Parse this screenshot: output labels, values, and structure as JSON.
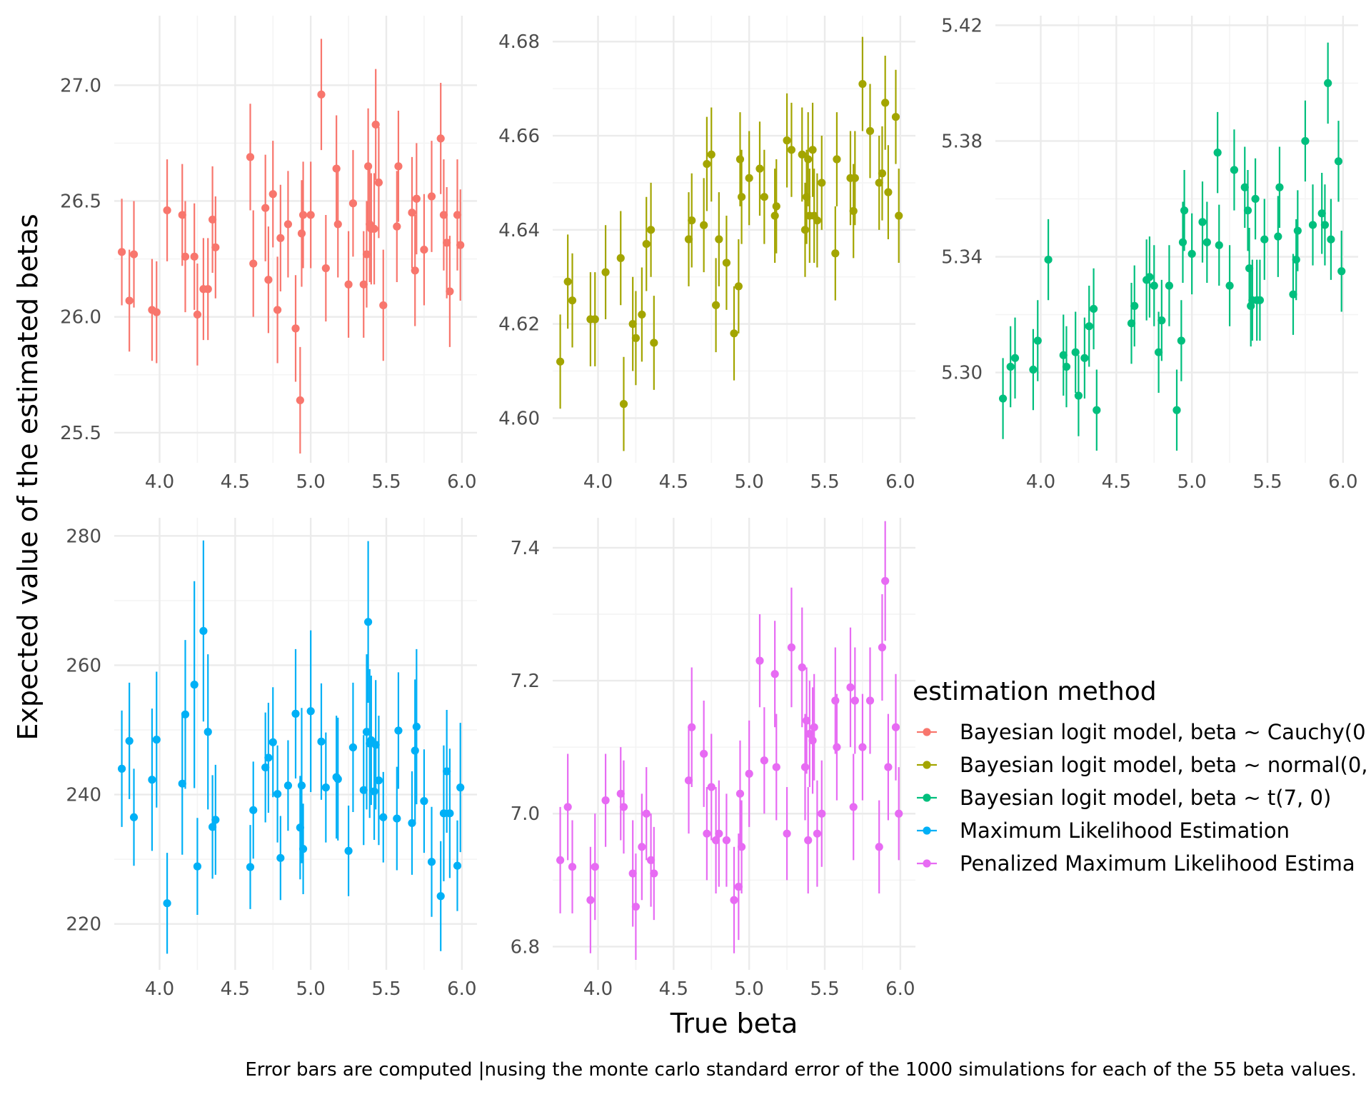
{
  "colors": {
    "cauchy": "#F8766D",
    "normal": "#A3A500",
    "t": "#00BF7D",
    "mle": "#00B0F6",
    "pmle": "#E76BF3",
    "grid_major": "#ebebeb",
    "grid_minor": "#f4f4f4"
  },
  "chart_data": {
    "type": "scatter",
    "x_label": "True beta",
    "y_label": "Expected value of the estimated betas",
    "caption": "Error bars are computed |nusing the monte carlo standard error of the 1000 simulations for each of the 55 beta values.",
    "legend": {
      "title": "estimation method",
      "placement": "right",
      "entries": [
        {
          "key": "cauchy",
          "label": "Bayesian logit model, beta ~ Cauchy(0"
        },
        {
          "key": "normal",
          "label": "Bayesian logit model, beta ~ normal(0,"
        },
        {
          "key": "t",
          "label": "Bayesian logit model, beta ~ t(7, 0)"
        },
        {
          "key": "mle",
          "label": "Maximum Likelihood Estimation"
        },
        {
          "key": "pmle",
          "label": "Penalized Maximum Likelihood Estima"
        }
      ]
    },
    "x_ticks": [
      "4.0",
      "4.5",
      "5.0",
      "5.5",
      "6.0"
    ],
    "x_tick_values": [
      4.0,
      4.5,
      5.0,
      5.5,
      6.0
    ],
    "xlim": [
      3.7,
      6.1
    ],
    "grid": true,
    "x": [
      3.75,
      3.8,
      3.83,
      3.95,
      3.98,
      4.05,
      4.15,
      4.17,
      4.23,
      4.25,
      4.29,
      4.32,
      4.35,
      4.37,
      4.6,
      4.62,
      4.7,
      4.72,
      4.75,
      4.78,
      4.8,
      4.85,
      4.9,
      4.93,
      4.94,
      4.95,
      5.0,
      5.07,
      5.1,
      5.17,
      5.18,
      5.25,
      5.28,
      5.35,
      5.37,
      5.38,
      5.39,
      5.4,
      5.42,
      5.43,
      5.45,
      5.48,
      5.57,
      5.58,
      5.67,
      5.69,
      5.7,
      5.75,
      5.8,
      5.86,
      5.88,
      5.9,
      5.92,
      5.97,
      5.99
    ],
    "panels": [
      {
        "key": "cauchy",
        "ylim": [
          25.37,
          27.3
        ],
        "y_ticks": [
          "25.5",
          "26.0",
          "26.5",
          "27.0"
        ],
        "y_tick_values": [
          25.5,
          26.0,
          26.5,
          27.0
        ],
        "y": [
          26.28,
          26.07,
          26.27,
          26.03,
          26.02,
          26.46,
          26.44,
          26.26,
          26.26,
          26.01,
          26.12,
          26.12,
          26.42,
          26.3,
          26.69,
          26.23,
          26.47,
          26.16,
          26.53,
          26.03,
          26.34,
          26.4,
          25.95,
          25.64,
          26.36,
          26.44,
          26.44,
          26.96,
          26.21,
          26.64,
          26.4,
          26.14,
          26.49,
          26.14,
          26.27,
          26.65,
          26.4,
          26.38,
          26.38,
          26.83,
          26.58,
          26.05,
          26.39,
          26.65,
          26.45,
          26.2,
          26.51,
          26.29,
          26.52,
          26.77,
          26.44,
          26.32,
          26.11,
          26.44,
          26.31
        ],
        "se": [
          0.23,
          0.22,
          0.23,
          0.22,
          0.22,
          0.22,
          0.22,
          0.24,
          0.23,
          0.22,
          0.22,
          0.22,
          0.23,
          0.22,
          0.23,
          0.23,
          0.23,
          0.23,
          0.23,
          0.23,
          0.23,
          0.23,
          0.23,
          0.23,
          0.23,
          0.23,
          0.23,
          0.24,
          0.23,
          0.23,
          0.23,
          0.23,
          0.23,
          0.23,
          0.23,
          0.25,
          0.25,
          0.24,
          0.24,
          0.24,
          0.24,
          0.24,
          0.24,
          0.24,
          0.24,
          0.24,
          0.24,
          0.24,
          0.24,
          0.24,
          0.24,
          0.24,
          0.24,
          0.24,
          0.24
        ]
      },
      {
        "key": "normal",
        "ylim": [
          4.5905,
          4.6855
        ],
        "y_ticks": [
          "4.60",
          "4.62",
          "4.64",
          "4.66",
          "4.68"
        ],
        "y_tick_values": [
          4.6,
          4.62,
          4.64,
          4.66,
          4.68
        ],
        "y": [
          4.612,
          4.629,
          4.625,
          4.621,
          4.621,
          4.631,
          4.634,
          4.603,
          4.62,
          4.617,
          4.622,
          4.637,
          4.64,
          4.616,
          4.638,
          4.642,
          4.641,
          4.654,
          4.656,
          4.624,
          4.638,
          4.633,
          4.618,
          4.628,
          4.655,
          4.647,
          4.651,
          4.653,
          4.647,
          4.643,
          4.645,
          4.659,
          4.657,
          4.656,
          4.64,
          4.647,
          4.655,
          4.643,
          4.657,
          4.643,
          4.642,
          4.65,
          4.635,
          4.655,
          4.651,
          4.644,
          4.651,
          4.671,
          4.661,
          4.65,
          4.652,
          4.667,
          4.648,
          4.664,
          4.643
        ],
        "se": [
          0.01,
          0.01,
          0.01,
          0.01,
          0.01,
          0.01,
          0.01,
          0.01,
          0.01,
          0.01,
          0.01,
          0.01,
          0.01,
          0.01,
          0.01,
          0.01,
          0.01,
          0.01,
          0.01,
          0.01,
          0.01,
          0.01,
          0.01,
          0.01,
          0.01,
          0.01,
          0.01,
          0.01,
          0.01,
          0.01,
          0.01,
          0.01,
          0.01,
          0.01,
          0.01,
          0.01,
          0.01,
          0.01,
          0.01,
          0.01,
          0.01,
          0.01,
          0.01,
          0.01,
          0.01,
          0.01,
          0.01,
          0.01,
          0.01,
          0.01,
          0.01,
          0.01,
          0.01,
          0.01,
          0.01
        ]
      },
      {
        "key": "t",
        "ylim": [
          5.2688,
          5.4233
        ],
        "y_ticks": [
          "5.30",
          "5.34",
          "5.38",
          "5.42"
        ],
        "y_tick_values": [
          5.3,
          5.34,
          5.38,
          5.42
        ],
        "y": [
          5.291,
          5.302,
          5.305,
          5.301,
          5.311,
          5.339,
          5.306,
          5.302,
          5.307,
          5.292,
          5.305,
          5.316,
          5.322,
          5.287,
          5.317,
          5.323,
          5.332,
          5.333,
          5.33,
          5.307,
          5.318,
          5.33,
          5.287,
          5.311,
          5.345,
          5.356,
          5.341,
          5.352,
          5.345,
          5.376,
          5.344,
          5.33,
          5.37,
          5.364,
          5.356,
          5.336,
          5.323,
          5.325,
          5.36,
          5.325,
          5.325,
          5.346,
          5.347,
          5.364,
          5.327,
          5.339,
          5.349,
          5.38,
          5.351,
          5.355,
          5.351,
          5.4,
          5.346,
          5.373,
          5.335
        ],
        "se": [
          0.014,
          0.014,
          0.014,
          0.014,
          0.014,
          0.014,
          0.014,
          0.014,
          0.014,
          0.014,
          0.014,
          0.014,
          0.014,
          0.014,
          0.014,
          0.014,
          0.014,
          0.014,
          0.014,
          0.014,
          0.014,
          0.014,
          0.014,
          0.014,
          0.014,
          0.014,
          0.014,
          0.014,
          0.014,
          0.014,
          0.014,
          0.014,
          0.014,
          0.014,
          0.014,
          0.014,
          0.014,
          0.014,
          0.014,
          0.014,
          0.014,
          0.014,
          0.014,
          0.014,
          0.014,
          0.014,
          0.014,
          0.014,
          0.014,
          0.014,
          0.014,
          0.014,
          0.014,
          0.014,
          0.014
        ]
      },
      {
        "key": "mle",
        "ylim": [
          212.9,
          282.8
        ],
        "y_ticks": [
          "220",
          "240",
          "260",
          "280"
        ],
        "y_tick_values": [
          220,
          240,
          260,
          280
        ],
        "y": [
          244.0,
          248.3,
          236.5,
          242.3,
          248.5,
          223.2,
          241.7,
          252.4,
          257.0,
          228.9,
          265.3,
          249.7,
          235.0,
          236.1,
          228.8,
          237.6,
          244.2,
          245.7,
          248.1,
          240.1,
          230.2,
          241.4,
          252.5,
          234.9,
          241.4,
          231.6,
          252.9,
          248.2,
          241.1,
          242.7,
          242.4,
          231.3,
          247.3,
          240.7,
          249.7,
          266.7,
          247.9,
          248.4,
          240.5,
          247.7,
          242.2,
          236.5,
          236.3,
          249.9,
          235.6,
          246.8,
          250.5,
          239.0,
          229.6,
          224.3,
          237.1,
          243.6,
          237.1,
          229.0,
          241.1
        ],
        "se": [
          9.0,
          9.0,
          7.5,
          11.0,
          10.5,
          7.8,
          11.0,
          11.5,
          16.0,
          7.5,
          14.0,
          12.0,
          8.0,
          8.5,
          6.5,
          7.5,
          8.5,
          8.5,
          8.5,
          7.5,
          6.5,
          7.0,
          10.0,
          8.0,
          12.0,
          7.0,
          12.5,
          9.0,
          8.5,
          9.5,
          9.5,
          7.0,
          10.0,
          8.5,
          12.0,
          12.5,
          11.5,
          10.0,
          7.5,
          10.0,
          10.0,
          7.0,
          8.0,
          9.0,
          8.0,
          11.0,
          12.0,
          8.0,
          8.5,
          8.5,
          10.5,
          9.5,
          10.0,
          7.0,
          10.0
        ]
      },
      {
        "key": "pmle",
        "ylim": [
          6.765,
          7.445
        ],
        "y_ticks": [
          "6.8",
          "7.0",
          "7.2",
          "7.4"
        ],
        "y_tick_values": [
          6.8,
          7.0,
          7.2,
          7.4
        ],
        "y": [
          6.93,
          7.01,
          6.92,
          6.87,
          6.92,
          7.02,
          7.03,
          7.01,
          6.91,
          6.86,
          6.95,
          7.0,
          6.93,
          6.91,
          7.05,
          7.13,
          7.09,
          6.97,
          7.04,
          6.96,
          6.97,
          6.96,
          6.87,
          6.89,
          7.03,
          6.95,
          7.06,
          7.23,
          7.08,
          7.21,
          7.07,
          6.97,
          7.25,
          7.22,
          7.07,
          7.14,
          6.96,
          7.12,
          7.11,
          7.13,
          6.97,
          7.0,
          7.17,
          7.1,
          7.19,
          7.01,
          7.17,
          7.1,
          7.17,
          6.95,
          7.25,
          7.35,
          7.07,
          7.13,
          7.0
        ],
        "se": [
          0.08,
          0.08,
          0.07,
          0.08,
          0.08,
          0.07,
          0.07,
          0.07,
          0.08,
          0.08,
          0.08,
          0.07,
          0.07,
          0.07,
          0.08,
          0.09,
          0.08,
          0.07,
          0.08,
          0.08,
          0.08,
          0.07,
          0.08,
          0.08,
          0.08,
          0.07,
          0.08,
          0.07,
          0.08,
          0.08,
          0.08,
          0.07,
          0.09,
          0.09,
          0.08,
          0.08,
          0.08,
          0.08,
          0.08,
          0.08,
          0.08,
          0.08,
          0.08,
          0.08,
          0.09,
          0.08,
          0.08,
          0.08,
          0.08,
          0.07,
          0.08,
          0.09,
          0.08,
          0.08,
          0.07
        ]
      }
    ]
  }
}
